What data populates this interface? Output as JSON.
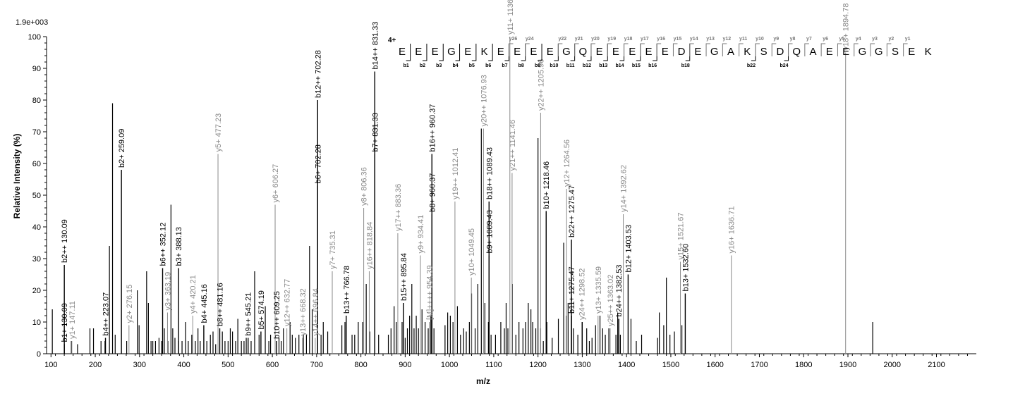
{
  "chart_data": {
    "type": "bar",
    "title": "",
    "max_intensity_label": "1.9e+003",
    "xlabel": "m/z",
    "ylabel": "Relative   Intensity (%)",
    "xlim": [
      90,
      2190
    ],
    "ylim": [
      0,
      100
    ],
    "xticks": [
      100,
      200,
      300,
      400,
      500,
      600,
      700,
      800,
      900,
      1000,
      1100,
      1200,
      1300,
      1400,
      1500,
      1600,
      1700,
      1800,
      1900,
      2000,
      2100
    ],
    "yticks": [
      0,
      10,
      20,
      30,
      40,
      50,
      60,
      70,
      80,
      90,
      100
    ],
    "grid": false,
    "legend": "none",
    "colors": {
      "b_ion": "#000000",
      "y_ion": "#8a8a8a",
      "axis": "#000000"
    },
    "unlabeled_peaks": [
      [
        103,
        14
      ],
      [
        146,
        4
      ],
      [
        160,
        3
      ],
      [
        188,
        8
      ],
      [
        196,
        8
      ],
      [
        213,
        4
      ],
      [
        222,
        4
      ],
      [
        232,
        34
      ],
      [
        239,
        79
      ],
      [
        245,
        6
      ],
      [
        271,
        4
      ],
      [
        295,
        20
      ],
      [
        299,
        9
      ],
      [
        316,
        26
      ],
      [
        320,
        16
      ],
      [
        326,
        4
      ],
      [
        330,
        4
      ],
      [
        336,
        4
      ],
      [
        344,
        5
      ],
      [
        350,
        4
      ],
      [
        356,
        8
      ],
      [
        364,
        4
      ],
      [
        371,
        47
      ],
      [
        375,
        8
      ],
      [
        380,
        5
      ],
      [
        388,
        4
      ],
      [
        396,
        4
      ],
      [
        404,
        10
      ],
      [
        410,
        4
      ],
      [
        418,
        6
      ],
      [
        426,
        4
      ],
      [
        432,
        8
      ],
      [
        437,
        4
      ],
      [
        452,
        4
      ],
      [
        460,
        6
      ],
      [
        466,
        7
      ],
      [
        472,
        3
      ],
      [
        487,
        7
      ],
      [
        493,
        4
      ],
      [
        500,
        4
      ],
      [
        505,
        8
      ],
      [
        510,
        7
      ],
      [
        517,
        4
      ],
      [
        522,
        11
      ],
      [
        530,
        4
      ],
      [
        536,
        4
      ],
      [
        541,
        5
      ],
      [
        552,
        4
      ],
      [
        560,
        26
      ],
      [
        570,
        6
      ],
      [
        584,
        15
      ],
      [
        592,
        4
      ],
      [
        596,
        6
      ],
      [
        615,
        5
      ],
      [
        620,
        4
      ],
      [
        625,
        8
      ],
      [
        640,
        10
      ],
      [
        645,
        6
      ],
      [
        652,
        5
      ],
      [
        660,
        6
      ],
      [
        670,
        6
      ],
      [
        677,
        6
      ],
      [
        684,
        34
      ],
      [
        690,
        14
      ],
      [
        710,
        6
      ],
      [
        715,
        10
      ],
      [
        725,
        7
      ],
      [
        757,
        9
      ],
      [
        764,
        10
      ],
      [
        780,
        6
      ],
      [
        786,
        6
      ],
      [
        794,
        10
      ],
      [
        804,
        10
      ],
      [
        812,
        22
      ],
      [
        820,
        7
      ],
      [
        840,
        6
      ],
      [
        862,
        6
      ],
      [
        868,
        8
      ],
      [
        875,
        15
      ],
      [
        880,
        10
      ],
      [
        893,
        10
      ],
      [
        900,
        5
      ],
      [
        905,
        8
      ],
      [
        910,
        12
      ],
      [
        915,
        22
      ],
      [
        920,
        8
      ],
      [
        925,
        12
      ],
      [
        930,
        8
      ],
      [
        938,
        14
      ],
      [
        945,
        10
      ],
      [
        952,
        8
      ],
      [
        958,
        12
      ],
      [
        965,
        8
      ],
      [
        990,
        9
      ],
      [
        996,
        13
      ],
      [
        1002,
        12
      ],
      [
        1008,
        10
      ],
      [
        1018,
        15
      ],
      [
        1025,
        6
      ],
      [
        1032,
        8
      ],
      [
        1038,
        7
      ],
      [
        1045,
        10
      ],
      [
        1050,
        19
      ],
      [
        1058,
        8
      ],
      [
        1064,
        22
      ],
      [
        1072,
        71
      ],
      [
        1080,
        16
      ],
      [
        1088,
        10
      ],
      [
        1094,
        6
      ],
      [
        1104,
        6
      ],
      [
        1116,
        10
      ],
      [
        1124,
        8
      ],
      [
        1128,
        16
      ],
      [
        1132,
        8
      ],
      [
        1142,
        22
      ],
      [
        1150,
        6
      ],
      [
        1157,
        10
      ],
      [
        1166,
        8
      ],
      [
        1172,
        10
      ],
      [
        1178,
        16
      ],
      [
        1184,
        14
      ],
      [
        1188,
        10
      ],
      [
        1195,
        8
      ],
      [
        1200,
        68
      ],
      [
        1206,
        8
      ],
      [
        1212,
        4
      ],
      [
        1220,
        10
      ],
      [
        1232,
        5
      ],
      [
        1246,
        11
      ],
      [
        1258,
        35
      ],
      [
        1264,
        12
      ],
      [
        1268,
        16
      ],
      [
        1280,
        8
      ],
      [
        1290,
        6
      ],
      [
        1300,
        10
      ],
      [
        1310,
        8
      ],
      [
        1316,
        4
      ],
      [
        1322,
        5
      ],
      [
        1330,
        9
      ],
      [
        1340,
        12
      ],
      [
        1346,
        8
      ],
      [
        1352,
        6
      ],
      [
        1360,
        8
      ],
      [
        1376,
        6
      ],
      [
        1380,
        13
      ],
      [
        1386,
        6
      ],
      [
        1410,
        11
      ],
      [
        1422,
        4
      ],
      [
        1434,
        6
      ],
      [
        1470,
        5
      ],
      [
        1474,
        13
      ],
      [
        1484,
        9
      ],
      [
        1490,
        24
      ],
      [
        1498,
        6
      ],
      [
        1508,
        7
      ],
      [
        1525,
        9
      ],
      [
        1956,
        10
      ]
    ],
    "labeled_peaks": [
      {
        "mz": 130.09,
        "i": 3,
        "label": "b1+ 130.09",
        "ion": "b"
      },
      {
        "mz": 130.09,
        "i": 28,
        "label": "b2++ 130.09",
        "ion": "b"
      },
      {
        "mz": 147.11,
        "i": 4,
        "label": "y1+ 147.11",
        "ion": "y"
      },
      {
        "mz": 223.07,
        "i": 5,
        "label": "b4++ 223.07",
        "ion": "b"
      },
      {
        "mz": 259.09,
        "i": 58,
        "label": "b2+ 259.09",
        "ion": "b"
      },
      {
        "mz": 276.15,
        "i": 9,
        "label": "y2+ 276.15",
        "ion": "y"
      },
      {
        "mz": 352.12,
        "i": 27,
        "label": "b6++ 352.12",
        "ion": "b"
      },
      {
        "mz": 363.19,
        "i": 13,
        "label": "y3+ 363.19",
        "ion": "y"
      },
      {
        "mz": 388.13,
        "i": 27,
        "label": "b3+ 388.13",
        "ion": "b"
      },
      {
        "mz": 420.21,
        "i": 12,
        "label": "y4+ 420.21",
        "ion": "y"
      },
      {
        "mz": 445.16,
        "i": 9,
        "label": "b4+ 445.16",
        "ion": "b"
      },
      {
        "mz": 477.23,
        "i": 63,
        "label": "y5+ 477.23",
        "ion": "y"
      },
      {
        "mz": 481.16,
        "i": 8,
        "label": "b8++ 481.16",
        "ion": "b"
      },
      {
        "mz": 545.21,
        "i": 5,
        "label": "b9++ 545.21",
        "ion": "b"
      },
      {
        "mz": 574.19,
        "i": 7,
        "label": "b5+ 574.19",
        "ion": "b"
      },
      {
        "mz": 606.27,
        "i": 47,
        "label": "y6+ 606.27",
        "ion": "y"
      },
      {
        "mz": 609.25,
        "i": 4,
        "label": "b10++ 609.25",
        "ion": "b"
      },
      {
        "mz": 632.77,
        "i": 8,
        "label": "y12++ 632.77",
        "ion": "y"
      },
      {
        "mz": 668.32,
        "i": 5,
        "label": "y13++ 668.32",
        "ion": "y"
      },
      {
        "mz": 696.84,
        "i": 5,
        "label": "y14++ 696.84",
        "ion": "y"
      },
      {
        "mz": 702.28,
        "i": 53,
        "label": "b6+ 702.28",
        "ion": "b"
      },
      {
        "mz": 702.28,
        "i": 80,
        "label": "b12++ 702.28",
        "ion": "b"
      },
      {
        "mz": 735.31,
        "i": 26,
        "label": "y7+ 735.31",
        "ion": "y"
      },
      {
        "mz": 766.78,
        "i": 12,
        "label": "b13++ 766.78",
        "ion": "b"
      },
      {
        "mz": 806.36,
        "i": 46,
        "label": "y8+ 806.36",
        "ion": "y"
      },
      {
        "mz": 818.84,
        "i": 26,
        "label": "y16++ 818.84",
        "ion": "y"
      },
      {
        "mz": 831.33,
        "i": 63,
        "label": "b7+ 831.33",
        "ion": "b"
      },
      {
        "mz": 831.33,
        "i": 89,
        "label": "b14++ 831.33",
        "ion": "b"
      },
      {
        "mz": 883.36,
        "i": 38,
        "label": "y17++ 883.36",
        "ion": "y"
      },
      {
        "mz": 895.84,
        "i": 16,
        "label": "b15++ 895.84",
        "ion": "b"
      },
      {
        "mz": 934.41,
        "i": 31,
        "label": "y9+ 934.41",
        "ion": "y"
      },
      {
        "mz": 954.39,
        "i": 10,
        "label": "[M]++++ 954.39",
        "ion": "y"
      },
      {
        "mz": 960.37,
        "i": 44,
        "label": "b8+ 960.37",
        "ion": "b"
      },
      {
        "mz": 960.37,
        "i": 63,
        "label": "b16++ 960.37",
        "ion": "b"
      },
      {
        "mz": 1012.41,
        "i": 48,
        "label": "y19++ 1012.41",
        "ion": "y"
      },
      {
        "mz": 1049.45,
        "i": 24,
        "label": "y10+ 1049.45",
        "ion": "y"
      },
      {
        "mz": 1076.93,
        "i": 71,
        "label": "y20++ 1076.93",
        "ion": "y"
      },
      {
        "mz": 1089.43,
        "i": 31,
        "label": "b9+ 1089.43",
        "ion": "b"
      },
      {
        "mz": 1089.43,
        "i": 48,
        "label": "b18++ 1089.43",
        "ion": "b"
      },
      {
        "mz": 1136.47,
        "i": 100,
        "label": "y11+ 1136.47",
        "ion": "y"
      },
      {
        "mz": 1141.46,
        "i": 57,
        "label": "y21++ 1141.46",
        "ion": "y"
      },
      {
        "mz": 1205.96,
        "i": 76,
        "label": "y22++ 1205.96",
        "ion": "y"
      },
      {
        "mz": 1218.46,
        "i": 45,
        "label": "b10+ 1218.46",
        "ion": "b"
      },
      {
        "mz": 1264.56,
        "i": 52,
        "label": "y12+ 1264.56",
        "ion": "y"
      },
      {
        "mz": 1275.47,
        "i": 12,
        "label": "b11+ 1275.47",
        "ion": "b"
      },
      {
        "mz": 1275.47,
        "i": 36,
        "label": "b22++ 1275.47",
        "ion": "b"
      },
      {
        "mz": 1298.52,
        "i": 10,
        "label": "y24++ 1298.52",
        "ion": "y"
      },
      {
        "mz": 1335.59,
        "i": 12,
        "label": "y13+ 1335.59",
        "ion": "y"
      },
      {
        "mz": 1363.02,
        "i": 8,
        "label": "y25++ 1363.02",
        "ion": "y"
      },
      {
        "mz": 1382.53,
        "i": 11,
        "label": "b24++ 1382.53",
        "ion": "b"
      },
      {
        "mz": 1392.62,
        "i": 44,
        "label": "y14+ 1392.62",
        "ion": "y"
      },
      {
        "mz": 1403.53,
        "i": 25,
        "label": "b12+ 1403.53",
        "ion": "b"
      },
      {
        "mz": 1521.67,
        "i": 29,
        "label": "y15+ 1521.67",
        "ion": "y"
      },
      {
        "mz": 1532.6,
        "i": 19,
        "label": "b13+ 1532.60",
        "ion": "b"
      },
      {
        "mz": 1636.71,
        "i": 31,
        "label": "y16+ 1636.71",
        "ion": "y"
      },
      {
        "mz": 1894.78,
        "i": 95,
        "label": "y18+ 1894.78",
        "ion": "y"
      }
    ],
    "sequence": {
      "charge": "4+",
      "residues": [
        "E",
        "E",
        "E",
        "G",
        "E",
        "K",
        "E",
        "E",
        "E",
        "E",
        "G",
        "Q",
        "E",
        "E",
        "E",
        "E",
        "E",
        "D",
        "E",
        "G",
        "A",
        "K",
        "S",
        "D",
        "Q",
        "A",
        "E",
        "E",
        "G",
        "G",
        "S",
        "E",
        "K"
      ],
      "b_ions": [
        {
          "after": 1,
          "label": "b1"
        },
        {
          "after": 2,
          "label": "b2"
        },
        {
          "after": 3,
          "label": "b3"
        },
        {
          "after": 4,
          "label": "b4"
        },
        {
          "after": 5,
          "label": "b5"
        },
        {
          "after": 6,
          "label": "b6"
        },
        {
          "after": 7,
          "label": "b7"
        },
        {
          "after": 8,
          "label": "b8"
        },
        {
          "after": 9,
          "label": "b9"
        },
        {
          "after": 10,
          "label": "b10"
        },
        {
          "after": 11,
          "label": "b11"
        },
        {
          "after": 12,
          "label": "b12"
        },
        {
          "after": 13,
          "label": "b13"
        },
        {
          "after": 14,
          "label": "b14"
        },
        {
          "after": 15,
          "label": "b15"
        },
        {
          "after": 16,
          "label": "b16"
        },
        {
          "after": 18,
          "label": "b18"
        },
        {
          "after": 22,
          "label": "b22"
        },
        {
          "after": 24,
          "label": "b24"
        }
      ],
      "y_ions": [
        {
          "after": 7,
          "label": "y26"
        },
        {
          "after": 8,
          "label": "y24"
        },
        {
          "after": 10,
          "label": "y22"
        },
        {
          "after": 11,
          "label": "y21"
        },
        {
          "after": 12,
          "label": "y20"
        },
        {
          "after": 13,
          "label": "y19"
        },
        {
          "after": 14,
          "label": "y18"
        },
        {
          "after": 15,
          "label": "y17"
        },
        {
          "after": 16,
          "label": "y16"
        },
        {
          "after": 17,
          "label": "y15"
        },
        {
          "after": 18,
          "label": "y14"
        },
        {
          "after": 19,
          "label": "y13"
        },
        {
          "after": 20,
          "label": "y12"
        },
        {
          "after": 21,
          "label": "y11"
        },
        {
          "after": 22,
          "label": "y10"
        },
        {
          "after": 23,
          "label": "y9"
        },
        {
          "after": 24,
          "label": "y8"
        },
        {
          "after": 25,
          "label": "y7"
        },
        {
          "after": 26,
          "label": "y6"
        },
        {
          "after": 27,
          "label": "y5"
        },
        {
          "after": 28,
          "label": "y4"
        },
        {
          "after": 29,
          "label": "y3"
        },
        {
          "after": 30,
          "label": "y2"
        },
        {
          "after": 31,
          "label": "y1"
        }
      ]
    }
  }
}
